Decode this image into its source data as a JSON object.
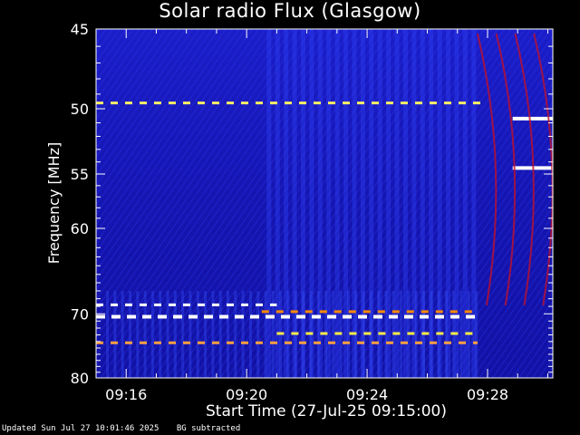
{
  "chart_data": {
    "type": "heatmap",
    "title": "Solar radio Flux (Glasgow)",
    "ylabel": "Frequency [MHz]",
    "xlabel": "Start Time (27-Jul-25 09:15:00)",
    "y_ticks": [
      45,
      50,
      55,
      60,
      70,
      80
    ],
    "y_tick_labels": [
      "45",
      "50",
      "55",
      "60",
      "70",
      "80"
    ],
    "ylim": [
      45,
      80
    ],
    "y_scale": "reciprocal",
    "x_ticks": [
      "09:16",
      "09:20",
      "09:24",
      "09:28"
    ],
    "xlim": [
      "09:15",
      "09:30:10"
    ],
    "grid": false,
    "colormap": [
      "#00008b",
      "#0000ff",
      "#8b0000",
      "#ff4500",
      "#ffff00",
      "#ffffff"
    ],
    "features": [
      {
        "kind": "interference_line",
        "freq_mhz": 49.6,
        "t_start": "09:15",
        "t_end": "09:28",
        "intensity": "yellow-white dashed"
      },
      {
        "kind": "interference_line",
        "freq_mhz": 50.7,
        "t_start": "09:28:50",
        "t_end": "09:30:10",
        "intensity": "white"
      },
      {
        "kind": "interference_line",
        "freq_mhz": 54.5,
        "t_start": "09:28:50",
        "t_end": "09:30:10",
        "intensity": "white"
      },
      {
        "kind": "interference_line",
        "freq_mhz": 68.8,
        "t_start": "09:15",
        "t_end": "09:21",
        "intensity": "white dashed"
      },
      {
        "kind": "interference_line",
        "freq_mhz": 69.7,
        "t_start": "09:20:30",
        "t_end": "09:27:40",
        "intensity": "orange dashed"
      },
      {
        "kind": "interference_line",
        "freq_mhz": 70.4,
        "t_start": "09:15",
        "t_end": "09:27:40",
        "intensity": "white"
      },
      {
        "kind": "interference_line",
        "freq_mhz": 72.8,
        "t_start": "09:21",
        "t_end": "09:27:40",
        "intensity": "yellow dashed"
      },
      {
        "kind": "interference_line",
        "freq_mhz": 74.2,
        "t_start": "09:15",
        "t_end": "09:27:40",
        "intensity": "orange/white dashed"
      },
      {
        "kind": "drifting_bursts",
        "t_start": "09:27:40",
        "t_end": "09:30:10",
        "intensity": "red arcs"
      }
    ]
  },
  "footer": {
    "updated": "Updated Sun Jul 27 10:01:46 2025",
    "note": "BG subtracted"
  }
}
